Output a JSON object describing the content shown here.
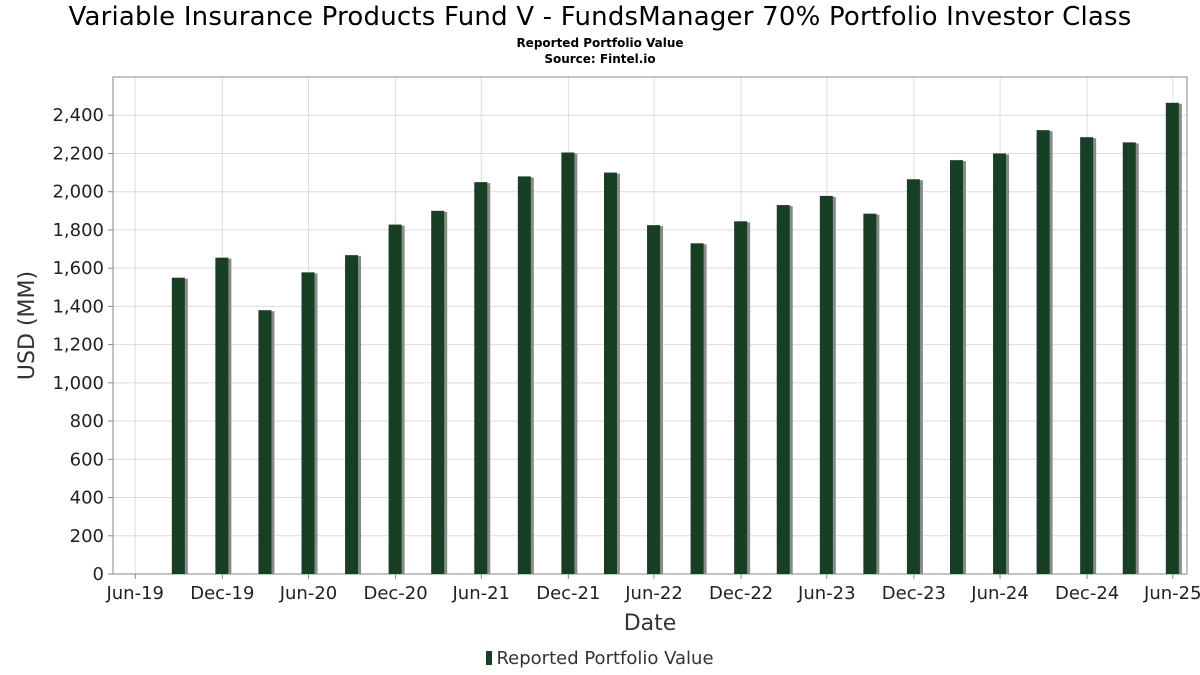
{
  "header": {
    "title": "Variable Insurance Products Fund V - FundsManager 70% Portfolio Investor Class",
    "subtitle": "Reported Portfolio Value",
    "source": "Source: Fintel.io"
  },
  "legend": {
    "label": "Reported Portfolio Value"
  },
  "colors": {
    "bar": "#173f23",
    "bar_shadow": "#8a8a8a",
    "grid": "#dddddd",
    "axis": "#888888"
  },
  "chart_data": {
    "type": "bar",
    "title": "Variable Insurance Products Fund V - FundsManager 70% Portfolio Investor Class",
    "subtitle": "Reported Portfolio Value",
    "xlabel": "Date",
    "ylabel": "USD (MM)",
    "ylim": [
      0,
      2600
    ],
    "yticks": [
      0,
      200,
      400,
      600,
      800,
      1000,
      1200,
      1400,
      1600,
      1800,
      2000,
      2200,
      2400
    ],
    "ytick_labels": [
      "0",
      "200",
      "400",
      "600",
      "800",
      "1,000",
      "1,200",
      "1,400",
      "1,600",
      "1,800",
      "2,000",
      "2,200",
      "2,400"
    ],
    "xlim": [
      "2019-05-15",
      "2025-07-31"
    ],
    "xticks": [
      "2019-07-01",
      "2020-01-01",
      "2020-07-01",
      "2021-01-01",
      "2021-07-01",
      "2022-01-01",
      "2022-07-01",
      "2023-01-01",
      "2023-07-01",
      "2024-01-01",
      "2024-07-01",
      "2025-01-01",
      "2025-07-01"
    ],
    "xtick_labels": [
      "Jun-19",
      "Dec-19",
      "Jun-20",
      "Dec-20",
      "Jun-21",
      "Dec-21",
      "Jun-22",
      "Dec-22",
      "Jun-23",
      "Dec-23",
      "Jun-24",
      "Dec-24",
      "Jun-25"
    ],
    "grid": true,
    "legend_position": "bottom-center",
    "series": [
      {
        "name": "Reported Portfolio Value",
        "color": "#173f23",
        "x": [
          "2019-09-30",
          "2019-12-31",
          "2020-03-31",
          "2020-06-30",
          "2020-09-30",
          "2020-12-31",
          "2021-03-31",
          "2021-06-30",
          "2021-09-30",
          "2021-12-31",
          "2022-03-31",
          "2022-06-30",
          "2022-09-30",
          "2022-12-31",
          "2023-03-31",
          "2023-06-30",
          "2023-09-30",
          "2023-12-31",
          "2024-03-31",
          "2024-06-30",
          "2024-09-30",
          "2024-12-31",
          "2025-03-31",
          "2025-06-30"
        ],
        "values": [
          1550,
          1655,
          1380,
          1578,
          1668,
          1828,
          1900,
          2050,
          2080,
          2205,
          2100,
          1825,
          1730,
          1845,
          1930,
          1978,
          1885,
          2065,
          2165,
          2200,
          2322,
          2285,
          2258,
          2465
        ]
      }
    ]
  }
}
